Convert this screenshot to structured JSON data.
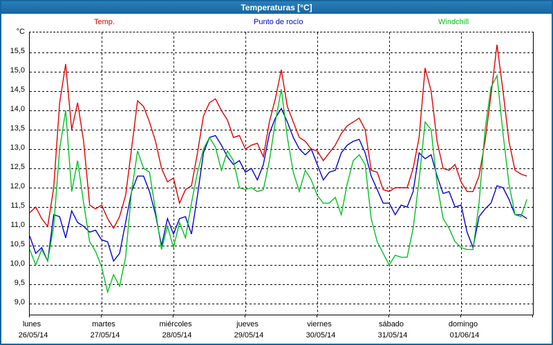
{
  "window": {
    "title": "Temperaturas [°C]"
  },
  "legend": [
    {
      "label": "Temp.",
      "color": "#dd0000"
    },
    {
      "label": "Punto de rocío",
      "color": "#0000cc"
    },
    {
      "label": "Windchill",
      "color": "#00c020"
    }
  ],
  "chart_data": {
    "type": "line",
    "title": "Temperaturas [°C]",
    "ylabel": "°C",
    "ylim": [
      9.0,
      15.5
    ],
    "y_step": 0.5,
    "grid": true,
    "legend_position": "top",
    "x_days": [
      {
        "name": "lunes",
        "date": "26/05/14"
      },
      {
        "name": "martes",
        "date": "27/05/14"
      },
      {
        "name": "miércoles",
        "date": "28/05/14"
      },
      {
        "name": "jueves",
        "date": "29/05/14"
      },
      {
        "name": "viernes",
        "date": "30/05/14"
      },
      {
        "name": "sábado",
        "date": "31/05/14"
      },
      {
        "name": "domingo",
        "date": "01/06/14"
      }
    ],
    "total_hours": 168,
    "hours_step": 2,
    "series": [
      {
        "name": "Temp.",
        "color": "#dd0000",
        "values": [
          11.35,
          11.5,
          11.2,
          11.0,
          12.0,
          14.2,
          15.2,
          13.5,
          14.2,
          13.2,
          11.55,
          11.45,
          11.55,
          11.2,
          10.95,
          11.25,
          11.8,
          13.0,
          14.25,
          14.1,
          13.7,
          13.2,
          12.5,
          12.15,
          12.25,
          11.6,
          11.95,
          12.05,
          12.9,
          13.85,
          14.2,
          14.3,
          14.0,
          13.75,
          13.3,
          13.35,
          13.0,
          13.1,
          13.15,
          12.8,
          13.7,
          14.3,
          15.05,
          14.1,
          13.7,
          13.3,
          13.2,
          13.0,
          12.95,
          12.7,
          12.9,
          13.1,
          13.4,
          13.6,
          13.7,
          13.8,
          13.5,
          12.45,
          12.4,
          11.95,
          11.9,
          12.0,
          12.0,
          12.0,
          12.5,
          13.3,
          15.1,
          14.5,
          13.2,
          12.5,
          12.45,
          12.6,
          12.15,
          11.9,
          11.9,
          12.3,
          13.2,
          14.4,
          15.7,
          14.5,
          13.2,
          12.45,
          12.35,
          12.3
        ]
      },
      {
        "name": "Punto de rocío",
        "color": "#0000cc",
        "values": [
          10.75,
          10.3,
          10.45,
          10.1,
          11.3,
          11.25,
          10.7,
          11.4,
          11.1,
          11.0,
          10.85,
          10.9,
          10.65,
          10.6,
          10.1,
          10.3,
          11.1,
          11.9,
          12.3,
          12.3,
          11.9,
          11.3,
          10.5,
          11.2,
          10.8,
          11.2,
          11.25,
          10.8,
          11.8,
          12.9,
          13.3,
          13.35,
          13.1,
          12.8,
          12.6,
          12.7,
          12.4,
          12.5,
          12.2,
          12.6,
          13.4,
          13.8,
          14.05,
          13.7,
          13.3,
          13.0,
          12.85,
          13.0,
          12.6,
          12.2,
          12.4,
          12.45,
          12.9,
          13.1,
          13.2,
          13.25,
          12.9,
          12.3,
          11.95,
          11.6,
          11.6,
          11.3,
          11.55,
          11.5,
          11.9,
          12.9,
          12.75,
          12.85,
          12.3,
          11.85,
          11.9,
          11.5,
          11.55,
          10.85,
          10.45,
          11.25,
          11.45,
          11.6,
          12.05,
          12.0,
          11.7,
          11.3,
          11.3,
          11.2
        ]
      },
      {
        "name": "Windchill",
        "color": "#00c020",
        "values": [
          10.4,
          10.0,
          10.4,
          10.1,
          11.0,
          13.0,
          14.0,
          11.9,
          12.7,
          11.6,
          10.6,
          10.35,
          9.95,
          9.3,
          9.75,
          9.45,
          10.2,
          11.9,
          12.95,
          12.5,
          12.4,
          11.4,
          10.4,
          11.0,
          10.45,
          11.1,
          10.7,
          11.6,
          12.4,
          13.0,
          13.3,
          13.05,
          12.45,
          12.95,
          12.7,
          12.0,
          11.95,
          12.0,
          11.9,
          11.95,
          12.7,
          13.7,
          14.55,
          13.3,
          12.4,
          11.9,
          12.45,
          12.2,
          11.8,
          11.6,
          11.6,
          11.75,
          11.3,
          12.1,
          12.7,
          12.85,
          12.6,
          11.2,
          10.6,
          10.3,
          10.0,
          10.25,
          10.2,
          10.2,
          10.95,
          12.2,
          13.7,
          13.5,
          12.1,
          11.2,
          10.95,
          10.6,
          10.45,
          10.4,
          10.4,
          11.6,
          13.5,
          14.6,
          14.9,
          13.4,
          12.1,
          11.3,
          11.25,
          11.7
        ]
      }
    ]
  }
}
